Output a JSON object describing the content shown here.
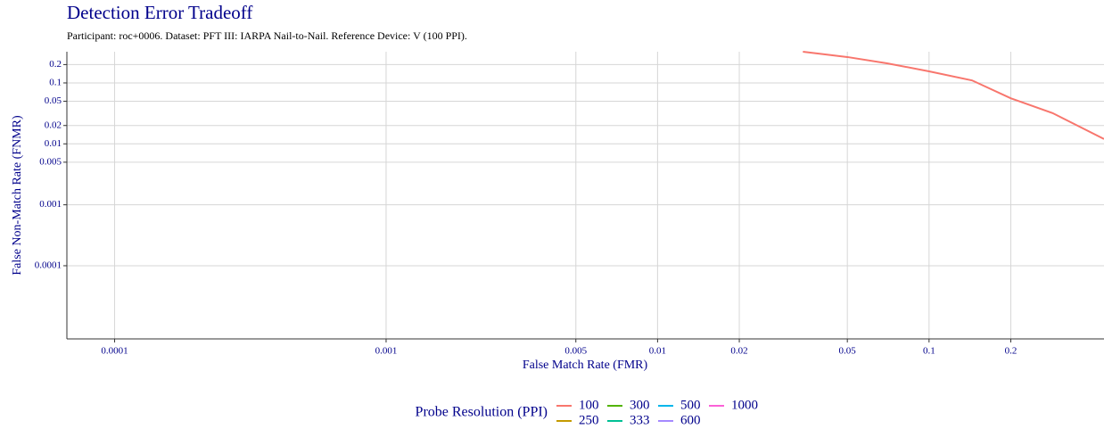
{
  "chart_data": {
    "type": "line",
    "title": "Detection Error Tradeoff",
    "subtitle": "Participant: roc+0006. Dataset: PFT III: IARPA Nail-to-Nail. Reference Device: V (100 PPI).",
    "x_label": "False Match Rate (FMR)",
    "y_label": "False Non-Match Rate (FNMR)",
    "log_x": true,
    "log_y": true,
    "grid": true,
    "xlim": [
      6.67e-05,
      0.441
    ],
    "ylim": [
      6.3e-06,
      0.325
    ],
    "xticks": [
      0.0001,
      0.001,
      0.005,
      0.01,
      0.02,
      0.05,
      0.1,
      0.2
    ],
    "yticks": [
      0.0001,
      0.001,
      0.005,
      0.01,
      0.02,
      0.05,
      0.1,
      0.2
    ],
    "legend_title": "Probe Resolution (PPI)",
    "legend": "bottom",
    "series": [
      {
        "name": "100",
        "color": "#F8766D",
        "x": [
          0.0343,
          0.05,
          0.07,
          0.1,
          0.144,
          0.2,
          0.285,
          0.441
        ],
        "values": [
          0.325,
          0.266,
          0.21,
          0.155,
          0.11,
          0.056,
          0.032,
          0.012
        ]
      },
      {
        "name": "250",
        "color": "#C49A00"
      },
      {
        "name": "300",
        "color": "#53B400"
      },
      {
        "name": "333",
        "color": "#00C094"
      },
      {
        "name": "500",
        "color": "#00B6EB"
      },
      {
        "name": "600",
        "color": "#A58AFF"
      },
      {
        "name": "1000",
        "color": "#FB61D7"
      }
    ]
  }
}
